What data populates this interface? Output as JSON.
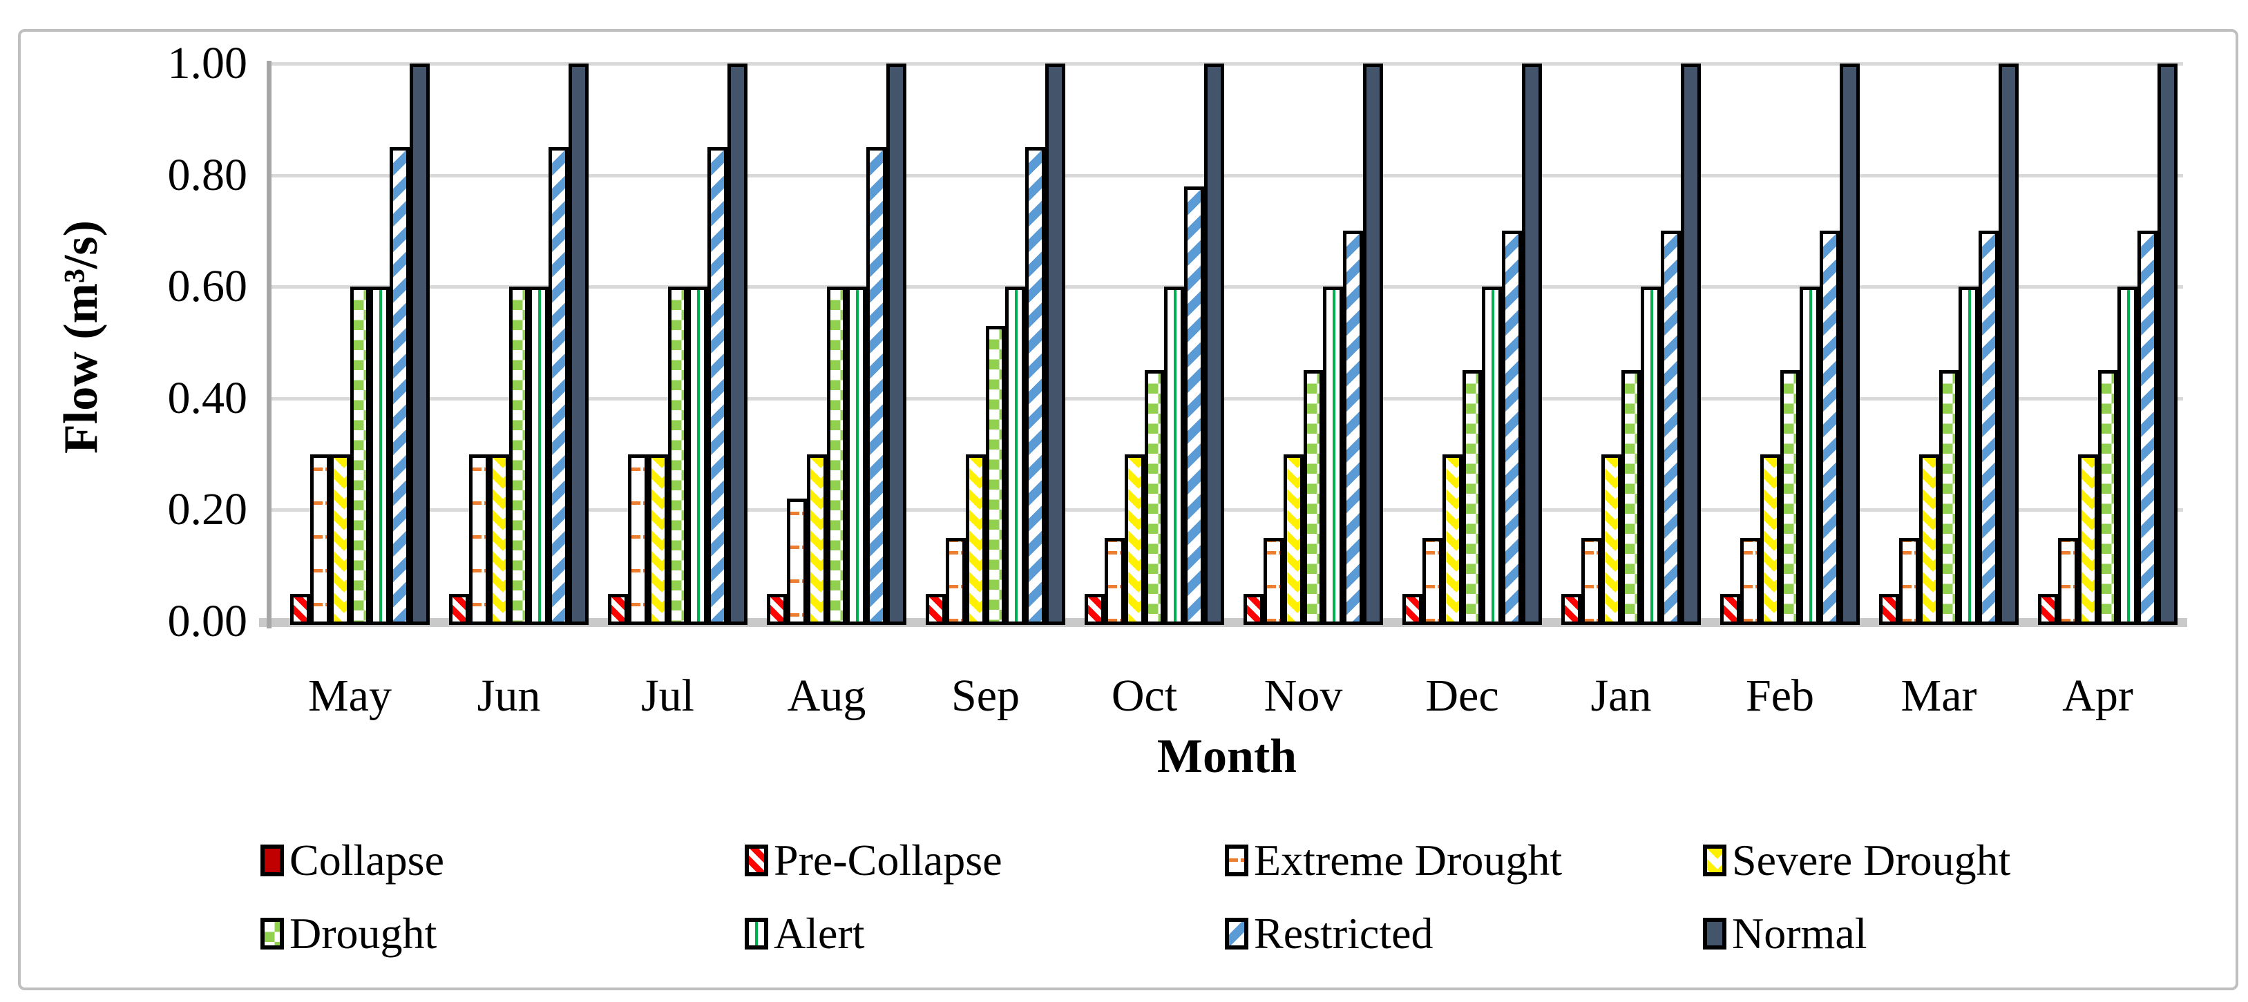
{
  "figure": {
    "background": "#FFFFFF",
    "border_color": "#BFBFBF"
  },
  "axes": {
    "y_title": "Flow (m³/s)",
    "x_title": "Month",
    "y_tick_labels": [
      "0.00",
      "0.20",
      "0.40",
      "0.60",
      "0.80",
      "1.00"
    ],
    "grid_color": "#D9D9D9",
    "axis_line_color": "#A6A6A6",
    "baseline_color": "#C9C9C9"
  },
  "chart_data": {
    "type": "bar",
    "title": "",
    "xlabel": "Month",
    "ylabel": "Flow (m³/s)",
    "ylim": [
      0,
      1.0
    ],
    "ytick_step": 0.2,
    "grid": true,
    "legend_position": "bottom",
    "categories": [
      "May",
      "Jun",
      "Jul",
      "Aug",
      "Sep",
      "Oct",
      "Nov",
      "Dec",
      "Jan",
      "Feb",
      "Mar",
      "Apr"
    ],
    "series": [
      {
        "name": "Collapse",
        "pattern": "solid",
        "color": "#C00000",
        "css": "p-solid-darkred",
        "values": [
          0,
          0,
          0,
          0,
          0,
          0,
          0,
          0,
          0,
          0,
          0,
          0
        ]
      },
      {
        "name": "Pre-Collapse",
        "pattern": "diagonal-stripes-down",
        "color": "#FF0000",
        "css": "p-stripe-red",
        "values": [
          0.05,
          0.05,
          0.05,
          0.05,
          0.05,
          0.05,
          0.05,
          0.05,
          0.05,
          0.05,
          0.05,
          0.05
        ]
      },
      {
        "name": "Extreme Drought",
        "pattern": "horizontal-dashes",
        "color": "#ED7D31",
        "css": "p-dash-orange",
        "values": [
          0.3,
          0.3,
          0.3,
          0.22,
          0.15,
          0.15,
          0.15,
          0.15,
          0.15,
          0.15,
          0.15,
          0.15
        ]
      },
      {
        "name": "Severe Drought",
        "pattern": "zigzag",
        "color": "#FFFF00",
        "css": "p-zigzag-yellow",
        "values": [
          0.3,
          0.3,
          0.3,
          0.3,
          0.3,
          0.3,
          0.3,
          0.3,
          0.3,
          0.3,
          0.3,
          0.3
        ]
      },
      {
        "name": "Drought",
        "pattern": "checkerboard",
        "color": "#92D050",
        "css": "p-check-green",
        "values": [
          0.6,
          0.6,
          0.6,
          0.6,
          0.53,
          0.45,
          0.45,
          0.45,
          0.45,
          0.45,
          0.45,
          0.45
        ]
      },
      {
        "name": "Alert",
        "pattern": "vertical-lines",
        "color": "#00B050",
        "css": "p-vline-green",
        "values": [
          0.6,
          0.6,
          0.6,
          0.6,
          0.6,
          0.6,
          0.6,
          0.6,
          0.6,
          0.6,
          0.6,
          0.6
        ]
      },
      {
        "name": "Restricted",
        "pattern": "diagonal-stripes-up",
        "color": "#5B9BD5",
        "css": "p-stripe-blue",
        "values": [
          0.85,
          0.85,
          0.85,
          0.85,
          0.85,
          0.78,
          0.7,
          0.7,
          0.7,
          0.7,
          0.7,
          0.7
        ]
      },
      {
        "name": "Normal",
        "pattern": "solid",
        "color": "#44546A",
        "css": "p-solid-slate",
        "values": [
          1.0,
          1.0,
          1.0,
          1.0,
          1.0,
          1.0,
          1.0,
          1.0,
          1.0,
          1.0,
          1.0,
          1.0
        ]
      }
    ]
  },
  "legend": {
    "rows": [
      [
        "Collapse",
        "Pre-Collapse",
        "Extreme Drought",
        "Severe Drought"
      ],
      [
        "Drought",
        "Alert",
        "Restricted",
        "Normal"
      ]
    ]
  }
}
